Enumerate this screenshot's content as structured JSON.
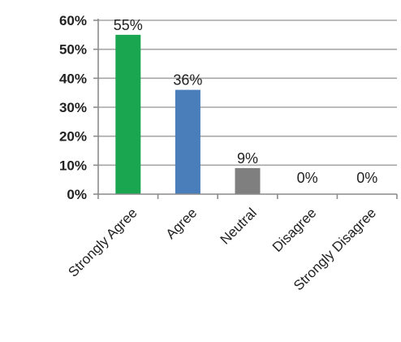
{
  "chart_data": {
    "type": "bar",
    "title": "",
    "xlabel": "",
    "ylabel": "",
    "categories": [
      "Strongly Agree",
      "Agree",
      "Neutral",
      "Disagree",
      "Strongly Disagree"
    ],
    "values": [
      55,
      36,
      9,
      0,
      0
    ],
    "data_labels": [
      "55%",
      "36%",
      "9%",
      "0%",
      "0%"
    ],
    "ylim": [
      0,
      60
    ],
    "yticks": [
      0,
      10,
      20,
      30,
      40,
      50,
      60
    ],
    "ytick_labels": [
      "0%",
      "10%",
      "20%",
      "30%",
      "40%",
      "50%",
      "60%"
    ],
    "colors": [
      "#1aa650",
      "#4a7ebb",
      "#7f7f7f",
      "#7f7f7f",
      "#7f7f7f"
    ],
    "grid": "horizontal",
    "legend": "none"
  }
}
